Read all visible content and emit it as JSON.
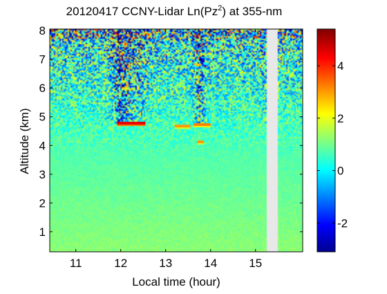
{
  "chart_data": {
    "type": "heatmap",
    "title_prefix": "20120417 CCNY-Lidar Ln(Pz",
    "title_sup": "2",
    "title_suffix": ") at 355-nm",
    "xlabel": "Local time (hour)",
    "ylabel": "Altitude (km)",
    "x_ticks": [
      11,
      12,
      13,
      14,
      15
    ],
    "y_ticks": [
      1,
      2,
      3,
      4,
      5,
      6,
      7,
      8
    ],
    "xlim": [
      10.42,
      16.05
    ],
    "ylim": [
      0.3,
      8.05
    ],
    "data_gap_hours": [
      15.25,
      15.5
    ],
    "colorbar": {
      "ticks": [
        {
          "value": 4,
          "label": "4"
        },
        {
          "value": 2,
          "label": "2"
        },
        {
          "value": 0,
          "label": "0"
        },
        {
          "value": -2,
          "label": "-2"
        }
      ],
      "range": [
        -3.1,
        5.4
      ],
      "colormap": [
        "#00008f",
        "#0000ff",
        "#00ffff",
        "#ffff00",
        "#ff0000",
        "#800000"
      ]
    },
    "cloud_layers": [
      {
        "x_start": 11.92,
        "x_end": 12.55,
        "altitude_km": 4.75,
        "value": 4.5
      },
      {
        "x_start": 13.2,
        "x_end": 13.55,
        "altitude_km": 4.65,
        "value": 3.0
      },
      {
        "x_start": 13.62,
        "x_end": 14.0,
        "altitude_km": 4.7,
        "value": 3.2
      },
      {
        "x_start": 13.7,
        "x_end": 13.85,
        "altitude_km": 4.1,
        "value": 3.0
      }
    ]
  }
}
